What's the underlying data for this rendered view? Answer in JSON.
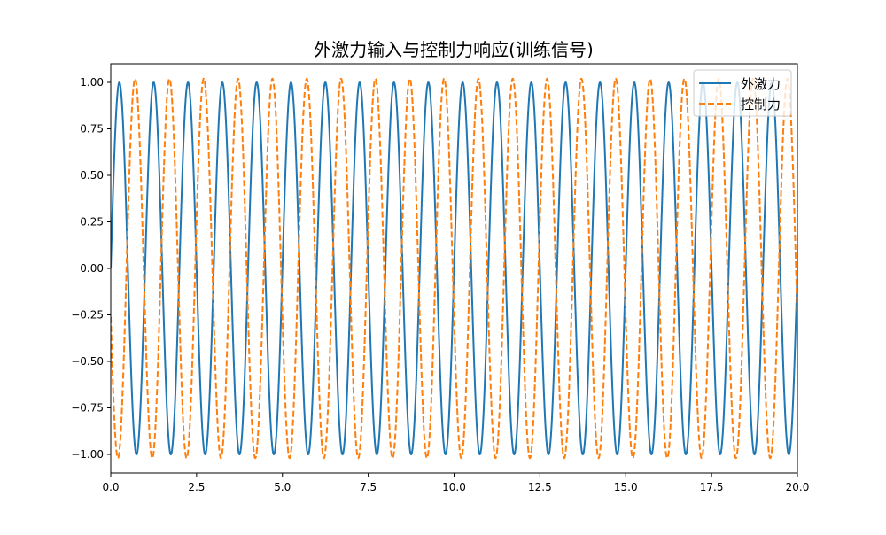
{
  "chart_data": {
    "type": "line",
    "title": "外激力输入与控制力响应(训练信号)",
    "xlabel": "",
    "ylabel": "",
    "xlim": [
      0,
      20
    ],
    "ylim": [
      -1.1,
      1.1
    ],
    "x_ticks": [
      0,
      2.5,
      5,
      7.5,
      10,
      12.5,
      15,
      17.5,
      20
    ],
    "x_tick_labels": [
      "0.0",
      "2.5",
      "5.0",
      "7.5",
      "10.0",
      "12.5",
      "15.0",
      "17.5",
      "20.0"
    ],
    "y_ticks": [
      -1,
      -0.75,
      -0.5,
      -0.25,
      0,
      0.25,
      0.5,
      0.75,
      1
    ],
    "y_tick_labels": [
      "−1.00",
      "−0.75",
      "−0.50",
      "−0.25",
      "0.00",
      "0.25",
      "0.50",
      "0.75",
      "1.00"
    ],
    "grid": false,
    "legend_position": "top-right",
    "series": [
      {
        "name": "外激力",
        "color": "#1f77b4",
        "style": "solid",
        "function": "sine",
        "amplitude": 1.0,
        "frequency_hz": 1.0,
        "phase_rad": 0.0,
        "x_range": [
          0,
          20
        ]
      },
      {
        "name": "控制力",
        "color": "#ff7f0e",
        "style": "dashed",
        "function": "sine",
        "amplitude": 1.02,
        "frequency_hz": 1.0,
        "phase_rad": 3.4,
        "x_range": [
          0,
          20
        ]
      }
    ]
  }
}
